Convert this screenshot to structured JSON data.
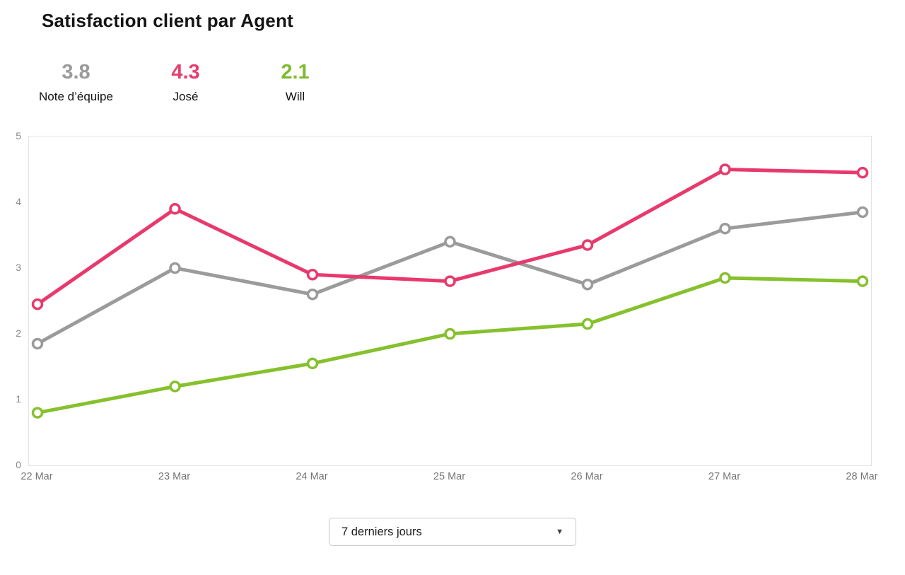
{
  "header": {
    "title": "Satisfaction client par Agent"
  },
  "stats": {
    "items": [
      {
        "value": "3.8",
        "label": "Note d’équipe",
        "color": "#9b9b9e"
      },
      {
        "value": "4.3",
        "label": "José",
        "color": "#e73e6d"
      },
      {
        "value": "2.1",
        "label": "Will",
        "color": "#7cbb2c"
      }
    ]
  },
  "filter": {
    "selected_period": "7 derniers jours",
    "caret_icon": "▼"
  },
  "chart_data": {
    "type": "line",
    "title": "Satisfaction client par Agent",
    "x": [
      "22 Mar",
      "23 Mar",
      "24 Mar",
      "25 Mar",
      "26 Mar",
      "27 Mar",
      "28 Mar"
    ],
    "series": [
      {
        "name": "Note d’équipe",
        "color": "#9b9b9b",
        "values": [
          1.85,
          3.0,
          2.6,
          3.4,
          2.75,
          3.6,
          3.85
        ]
      },
      {
        "name": "Will",
        "color": "#86c12d",
        "values": [
          0.8,
          1.2,
          1.55,
          2.0,
          2.15,
          2.85,
          2.8
        ]
      },
      {
        "name": "José",
        "color": "#e8396d",
        "values": [
          2.45,
          3.9,
          2.9,
          2.8,
          3.35,
          4.5,
          4.45
        ]
      }
    ],
    "ylim": [
      0,
      5
    ],
    "yticks": [
      0,
      1,
      2,
      3,
      4,
      5
    ],
    "xlabel": "",
    "ylabel": "",
    "grid": false,
    "legend_position": "none",
    "marker": "open-circle",
    "plot_border_color": "#e3e3e3"
  }
}
